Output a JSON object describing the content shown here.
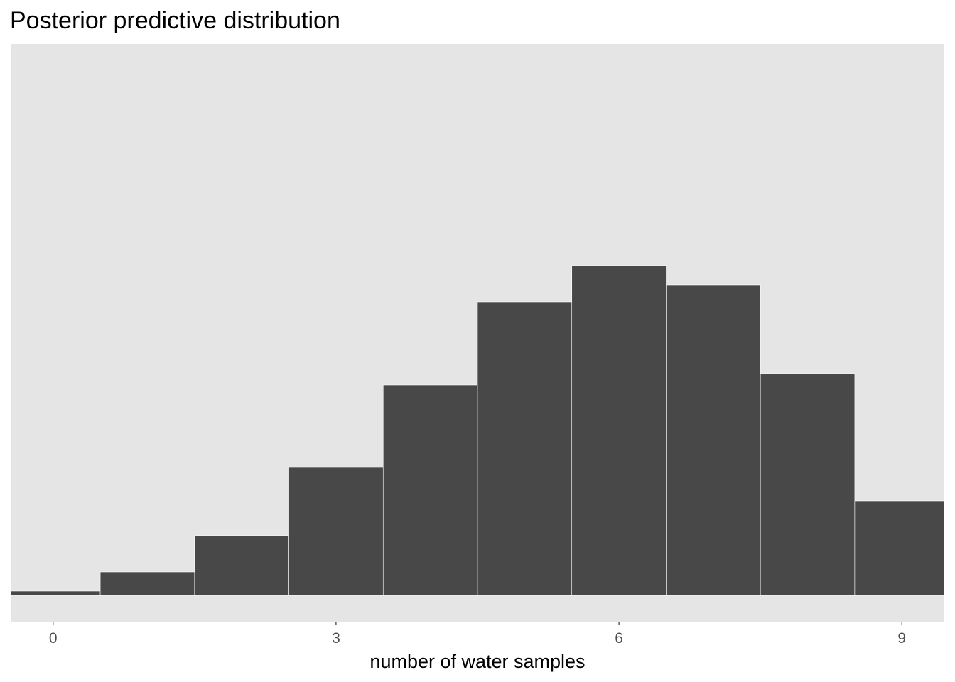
{
  "chart_data": {
    "type": "bar",
    "title": "Posterior predictive distribution",
    "xlabel": "number of water samples",
    "ylabel": "",
    "categories": [
      0,
      1,
      2,
      3,
      4,
      5,
      6,
      7,
      8,
      9
    ],
    "values": [
      6,
      33,
      84,
      180,
      296,
      413,
      464,
      437,
      312,
      133
    ],
    "xticks": [
      0,
      3,
      6,
      9
    ],
    "xtick_labels": [
      "0",
      "3",
      "6",
      "9"
    ],
    "ylim": [
      -37,
      776
    ],
    "xlim": [
      -0.45,
      9.45
    ],
    "grid": false,
    "y_axis_shown": false,
    "colors": {
      "panel_background": "#e5e5e5",
      "bar_fill": "#484848",
      "bar_outline": "#ffffff",
      "tick_text": "#4d4d4d",
      "tick_mark": "#333333"
    }
  }
}
